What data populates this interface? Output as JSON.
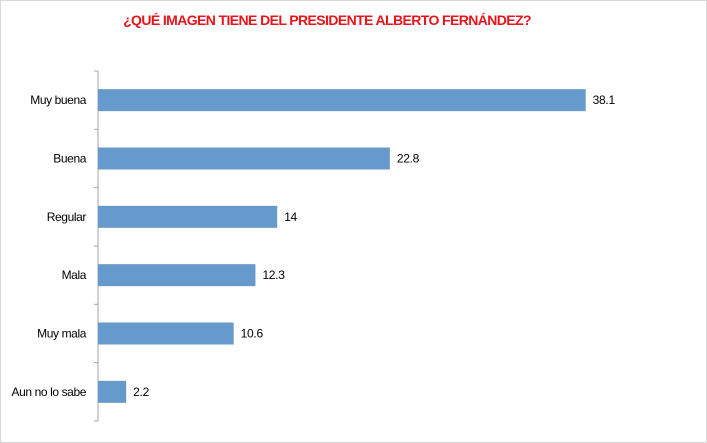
{
  "chart_data": {
    "type": "bar",
    "orientation": "horizontal",
    "title": "¿QUÉ IMAGEN TIENE DEL PRESIDENTE ALBERTO FERNÁNDEZ?",
    "categories": [
      "Muy buena",
      "Buena",
      "Regular",
      "Mala",
      "Muy mala",
      "Aun no lo sabe"
    ],
    "values": [
      38.1,
      22.8,
      14,
      12.3,
      10.6,
      2.2
    ],
    "xlabel": "",
    "ylabel": "",
    "xlim": [
      0,
      40
    ],
    "grid": false,
    "legend": "none",
    "bar_color": "#6699cc",
    "title_color": "#e8141b"
  }
}
